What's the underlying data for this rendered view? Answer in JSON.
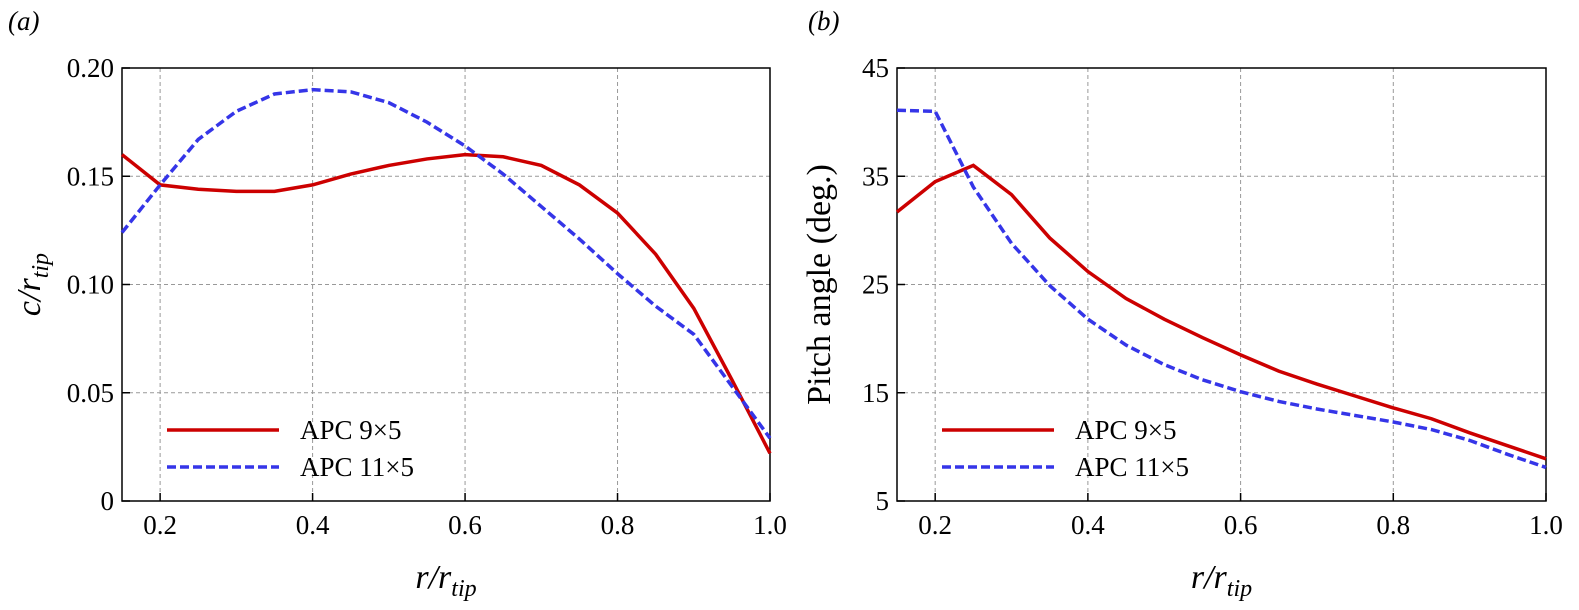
{
  "chart_data": [
    {
      "type": "line",
      "panel_label": "(a)",
      "xlabel": {
        "main": "r/r",
        "sub": "tip"
      },
      "ylabel": {
        "main": "c/r",
        "sub": "tip"
      },
      "x": [
        0.15,
        0.2,
        0.25,
        0.3,
        0.35,
        0.4,
        0.45,
        0.5,
        0.55,
        0.6,
        0.65,
        0.7,
        0.75,
        0.8,
        0.85,
        0.9,
        0.95,
        1.0
      ],
      "series": [
        {
          "name": "APC 9×5",
          "color": "#cc0000",
          "dash": false,
          "values": [
            0.16,
            0.146,
            0.144,
            0.143,
            0.143,
            0.146,
            0.151,
            0.155,
            0.158,
            0.16,
            0.159,
            0.155,
            0.146,
            0.133,
            0.114,
            0.089,
            0.056,
            0.022
          ]
        },
        {
          "name": "APC 11×5",
          "color": "#3535e8",
          "dash": true,
          "values": [
            0.124,
            0.146,
            0.167,
            0.18,
            0.188,
            0.19,
            0.189,
            0.184,
            0.175,
            0.164,
            0.151,
            0.136,
            0.121,
            0.105,
            0.09,
            0.077,
            0.053,
            0.029
          ]
        }
      ],
      "xlim": [
        0.15,
        1.0
      ],
      "xticks": [
        0.2,
        0.4,
        0.6,
        0.8,
        {
          "value": 1.0,
          "label": "1.0"
        }
      ],
      "ylim": [
        0,
        0.2
      ],
      "yticks": [
        0,
        {
          "value": 0.05,
          "label": "0.05"
        },
        {
          "value": 0.1,
          "label": "0.10"
        },
        {
          "value": 0.15,
          "label": "0.15"
        },
        {
          "value": 0.2,
          "label": "0.20"
        }
      ],
      "grid": true,
      "legend": "lower-left"
    },
    {
      "type": "line",
      "panel_label": "(b)",
      "xlabel": {
        "main": "r/r",
        "sub": "tip"
      },
      "ylabel": {
        "main": "Pitch angle (deg.)",
        "sub": null
      },
      "x": [
        0.15,
        0.2,
        0.25,
        0.3,
        0.35,
        0.4,
        0.45,
        0.5,
        0.55,
        0.6,
        0.65,
        0.7,
        0.75,
        0.8,
        0.85,
        0.9,
        0.95,
        1.0
      ],
      "series": [
        {
          "name": "APC 9×5",
          "color": "#cc0000",
          "dash": false,
          "values": [
            31.7,
            34.5,
            36.0,
            33.3,
            29.3,
            26.2,
            23.7,
            21.8,
            20.1,
            18.5,
            17.0,
            15.8,
            14.7,
            13.6,
            12.6,
            11.3,
            10.1,
            8.9
          ]
        },
        {
          "name": "APC 11×5",
          "color": "#3535e8",
          "dash": true,
          "values": [
            41.1,
            41.0,
            34.0,
            28.8,
            24.9,
            21.8,
            19.4,
            17.6,
            16.2,
            15.1,
            14.2,
            13.5,
            12.9,
            12.3,
            11.6,
            10.6,
            9.3,
            8.1
          ]
        }
      ],
      "xlim": [
        0.15,
        1.0
      ],
      "xticks": [
        0.2,
        0.4,
        0.6,
        0.8,
        {
          "value": 1.0,
          "label": "1.0"
        }
      ],
      "ylim": [
        5,
        45
      ],
      "yticks": [
        5,
        15,
        25,
        35,
        45
      ],
      "grid": true,
      "legend": "lower-left"
    }
  ]
}
